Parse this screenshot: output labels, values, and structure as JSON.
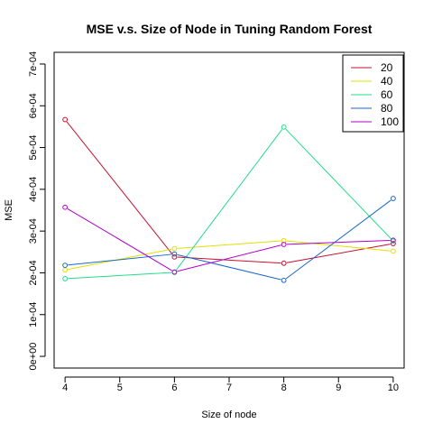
{
  "chart_data": {
    "type": "line",
    "title": "MSE v.s. Size of Node in Tuning Random Forest",
    "xlabel": "Size of node",
    "ylabel": "MSE",
    "x": [
      4,
      6,
      8,
      10
    ],
    "xlim": [
      3.8,
      10.2
    ],
    "ylim": [
      -2.8e-05,
      0.000728
    ],
    "x_ticks": [
      4,
      5,
      6,
      7,
      8,
      9,
      10
    ],
    "y_ticks": [
      "0e+00",
      "1e-04",
      "2e-04",
      "3e-04",
      "4e-04",
      "5e-04",
      "6e-04",
      "7e-04"
    ],
    "y_tick_values": [
      0,
      0.0001,
      0.0002,
      0.0003,
      0.0004,
      0.0005,
      0.0006,
      0.0007
    ],
    "legend_position": "top-right",
    "grid": false,
    "series": [
      {
        "name": "20",
        "color": "#c8102e",
        "values": [
          0.000567,
          0.000238,
          0.000223,
          0.00027
        ]
      },
      {
        "name": "40",
        "color": "#e0e000",
        "values": [
          0.000207,
          0.000258,
          0.000277,
          0.000252
        ]
      },
      {
        "name": "60",
        "color": "#22dd88",
        "values": [
          0.000186,
          0.000201,
          0.000549,
          0.000276
        ]
      },
      {
        "name": "80",
        "color": "#1a66cc",
        "values": [
          0.000218,
          0.000245,
          0.000182,
          0.000378
        ]
      },
      {
        "name": "100",
        "color": "#b000cc",
        "values": [
          0.000357,
          0.000202,
          0.000268,
          0.000278
        ]
      }
    ]
  }
}
